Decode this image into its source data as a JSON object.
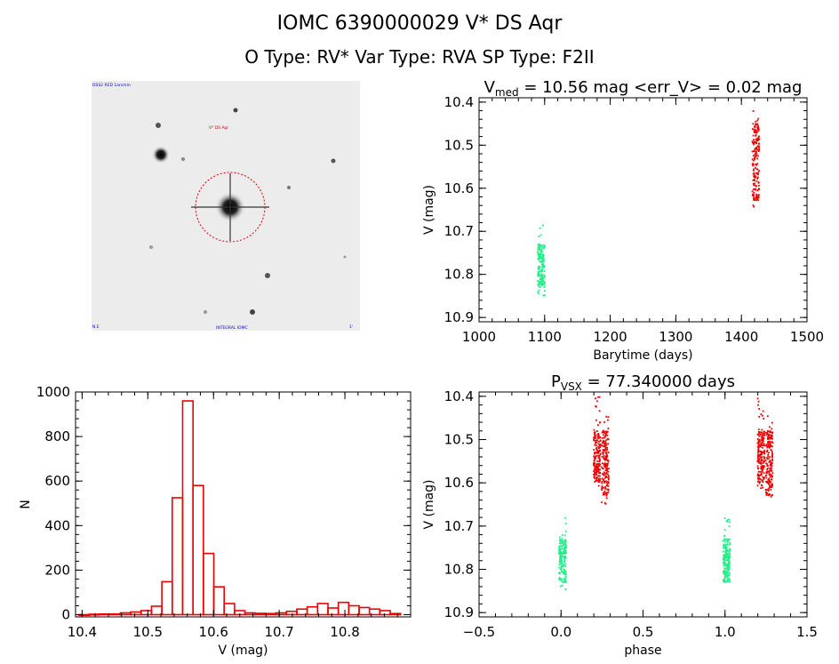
{
  "header": {
    "line1": "IOMC 6390000029    V* DS Aqr",
    "line2": "O Type: RV*   Var Type: RVA   SP Type: F2II"
  },
  "thumbnail": {
    "top_left_label": "DSS2 RED 1arcmin",
    "target_label": "V* DS Aqr",
    "bottom_left_label": "N E",
    "bottom_center_label": "INTEGRAL IOMC",
    "bottom_right_label": "1'",
    "circle_color": "#dd0000"
  },
  "colors": {
    "red": "#ee0000",
    "green": "#22ee88",
    "axis": "#000000"
  },
  "chart_data": [
    {
      "id": "lightcurve",
      "type": "scatter",
      "title_prefix": "V",
      "title_sub": "med",
      "title_rest": " = 10.56 mag <err_V> = 0.02 mag",
      "xlabel": "Barytime (days)",
      "ylabel": "V (mag)",
      "xlim": [
        1000,
        1500
      ],
      "ylim": [
        10.91,
        10.39
      ],
      "xticks": [
        1000,
        1100,
        1200,
        1300,
        1400,
        1500
      ],
      "yticks": [
        10.4,
        10.5,
        10.6,
        10.7,
        10.8,
        10.9
      ],
      "xtick_labels": [
        "1000",
        "1100",
        "1200",
        "1300",
        "1400",
        "1500"
      ],
      "ytick_labels": [
        "10.4",
        "10.5",
        "10.6",
        "10.7",
        "10.8",
        "10.9"
      ],
      "series": [
        {
          "name": "green",
          "color": "#22ee88",
          "clusters": [
            {
              "x": 1095,
              "y_min": 10.68,
              "y_max": 10.86,
              "core": [
                10.73,
                10.83
              ]
            }
          ]
        },
        {
          "name": "red",
          "color": "#ee0000",
          "clusters": [
            {
              "x": 1422,
              "y_min": 10.41,
              "y_max": 10.65,
              "core": [
                10.45,
                10.63
              ]
            }
          ]
        }
      ]
    },
    {
      "id": "histogram",
      "type": "bar",
      "xlabel": "V (mag)",
      "ylabel": "N",
      "xlim": [
        10.39,
        10.9
      ],
      "ylim": [
        -10,
        1000
      ],
      "xticks": [
        10.4,
        10.5,
        10.6,
        10.7,
        10.8
      ],
      "yticks": [
        0,
        200,
        400,
        600,
        800,
        1000
      ],
      "xtick_labels": [
        "10.4",
        "10.5",
        "10.6",
        "10.7",
        "10.8"
      ],
      "ytick_labels": [
        "0",
        "200",
        "400",
        "600",
        "800",
        "1000"
      ],
      "bin_start": 10.395,
      "bin_width": 0.0158,
      "values": [
        0,
        2,
        3,
        3,
        8,
        12,
        18,
        38,
        148,
        525,
        960,
        580,
        275,
        125,
        50,
        18,
        8,
        6,
        5,
        8,
        15,
        25,
        35,
        50,
        30,
        55,
        40,
        32,
        25,
        18,
        5
      ]
    },
    {
      "id": "phased",
      "type": "scatter",
      "title_prefix": "P",
      "title_sub": "VSX",
      "title_rest": " = 77.340000 days",
      "xlabel": "phase",
      "ylabel": "V (mag)",
      "xlim": [
        -0.5,
        1.5
      ],
      "ylim": [
        10.91,
        10.39
      ],
      "xticks": [
        -0.5,
        0.0,
        0.5,
        1.0,
        1.5
      ],
      "yticks": [
        10.4,
        10.5,
        10.6,
        10.7,
        10.8,
        10.9
      ],
      "xtick_labels": [
        "−0.5",
        "0.0",
        "0.5",
        "1.0",
        "1.5"
      ],
      "ytick_labels": [
        "10.4",
        "10.5",
        "10.6",
        "10.7",
        "10.8",
        "10.9"
      ],
      "series": [
        {
          "name": "green",
          "color": "#22ee88",
          "clusters": [
            {
              "x": 0.01,
              "y_min": 10.68,
              "y_max": 10.86,
              "core": [
                10.73,
                10.83
              ]
            },
            {
              "x": 1.01,
              "y_min": 10.68,
              "y_max": 10.86,
              "core": [
                10.73,
                10.83
              ]
            }
          ]
        },
        {
          "name": "red",
          "color": "#ee0000",
          "clusters": [
            {
              "x": 0.22,
              "y_min": 10.4,
              "y_max": 10.62,
              "core": [
                10.48,
                10.6
              ]
            },
            {
              "x": 0.27,
              "y_min": 10.44,
              "y_max": 10.65,
              "core": [
                10.48,
                10.63
              ]
            },
            {
              "x": 1.22,
              "y_min": 10.4,
              "y_max": 10.62,
              "core": [
                10.48,
                10.6
              ]
            },
            {
              "x": 1.27,
              "y_min": 10.44,
              "y_max": 10.65,
              "core": [
                10.48,
                10.63
              ]
            }
          ]
        }
      ]
    }
  ]
}
